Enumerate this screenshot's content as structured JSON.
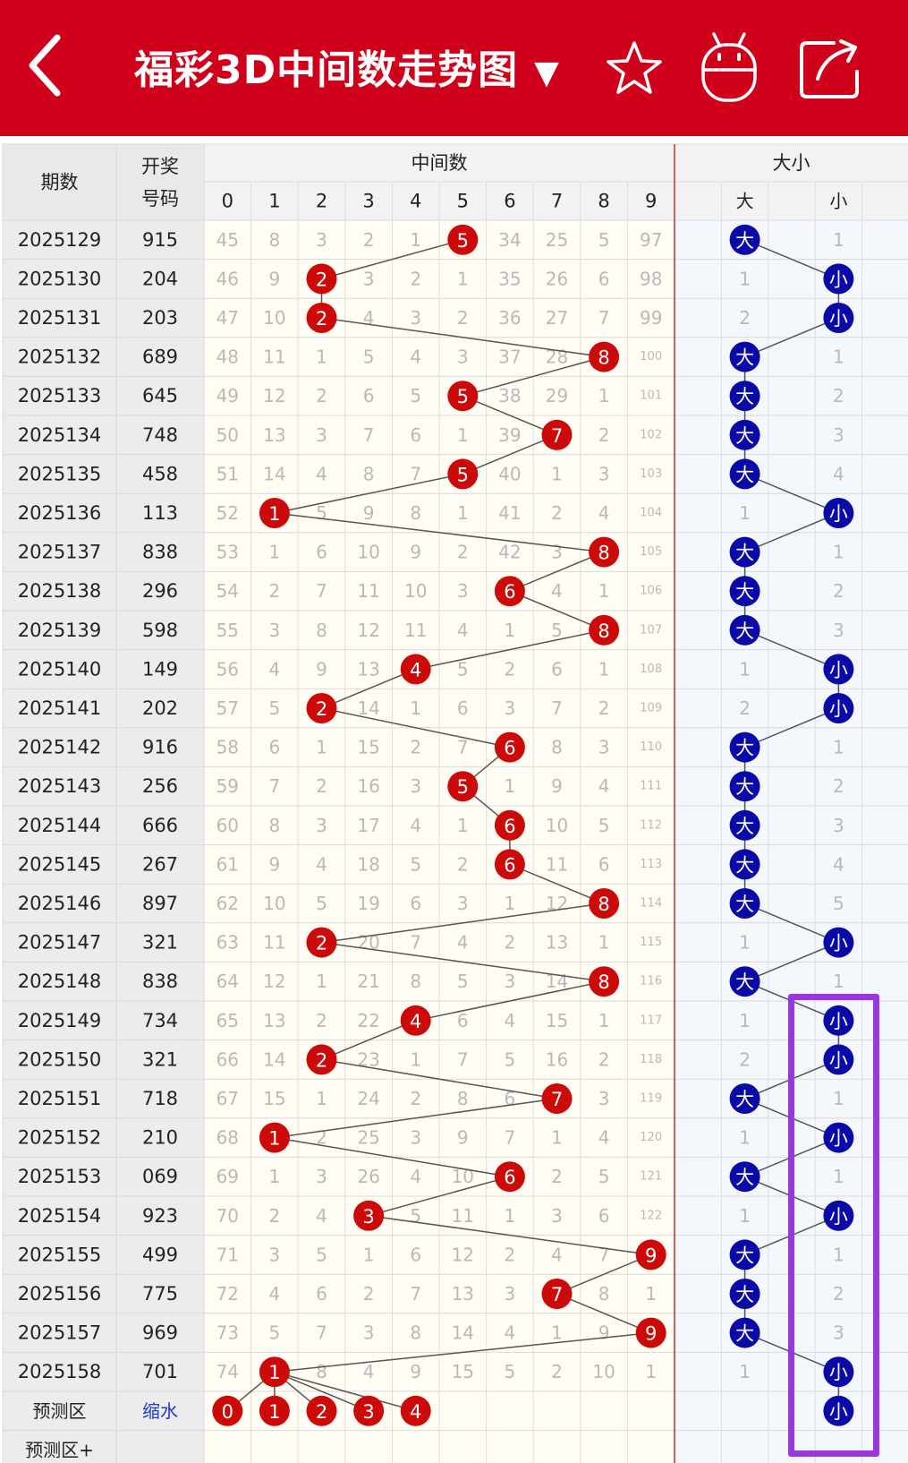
{
  "header": {
    "title": "福彩3D中间数走势图",
    "dropdown_icon": "triangle-down-icon",
    "back_icon": "back-chevron-icon",
    "favorite_icon": "star-icon",
    "robot_icon": "robot-icon",
    "share_icon": "share-icon",
    "color": "#d0021b"
  },
  "table": {
    "col_period": "期数",
    "col_draw_line1": "开奖",
    "col_draw_line2": "号码",
    "group_middle": "中间数",
    "group_size": "大小",
    "digit_headers": [
      "0",
      "1",
      "2",
      "3",
      "4",
      "5",
      "6",
      "7",
      "8",
      "9"
    ],
    "size_headers": [
      "大",
      "",
      "小"
    ],
    "big_label": "大",
    "small_label": "小"
  },
  "chart_data": {
    "type": "table",
    "periods": [
      "2025129",
      "2025130",
      "2025131",
      "2025132",
      "2025133",
      "2025134",
      "2025135",
      "2025136",
      "2025137",
      "2025138",
      "2025139",
      "2025140",
      "2025141",
      "2025142",
      "2025143",
      "2025144",
      "2025145",
      "2025146",
      "2025147",
      "2025148",
      "2025149",
      "2025150",
      "2025151",
      "2025152",
      "2025153",
      "2025154",
      "2025155",
      "2025156",
      "2025157",
      "2025158"
    ],
    "draws": [
      "915",
      "204",
      "203",
      "689",
      "645",
      "748",
      "458",
      "113",
      "838",
      "296",
      "598",
      "149",
      "202",
      "916",
      "256",
      "666",
      "267",
      "897",
      "321",
      "838",
      "734",
      "321",
      "718",
      "210",
      "069",
      "923",
      "499",
      "775",
      "969",
      "701"
    ],
    "middle": [
      5,
      2,
      2,
      8,
      5,
      7,
      5,
      1,
      8,
      6,
      8,
      4,
      2,
      6,
      5,
      6,
      6,
      8,
      2,
      8,
      4,
      2,
      7,
      1,
      6,
      3,
      9,
      7,
      9,
      1
    ],
    "size": [
      "大",
      "小",
      "小",
      "大",
      "大",
      "大",
      "大",
      "小",
      "大",
      "大",
      "大",
      "小",
      "小",
      "大",
      "大",
      "大",
      "大",
      "大",
      "小",
      "大",
      "小",
      "小",
      "大",
      "小",
      "大",
      "小",
      "大",
      "大",
      "大",
      "小"
    ],
    "omissions": [
      [
        "45",
        "8",
        "3",
        "2",
        "1",
        "5",
        "34",
        "25",
        "5",
        "97"
      ],
      [
        "46",
        "9",
        "2",
        "3",
        "2",
        "1",
        "35",
        "26",
        "6",
        "98"
      ],
      [
        "47",
        "10",
        "2",
        "4",
        "3",
        "2",
        "36",
        "27",
        "7",
        "99"
      ],
      [
        "48",
        "11",
        "1",
        "5",
        "4",
        "3",
        "37",
        "28",
        "8",
        "100"
      ],
      [
        "49",
        "12",
        "2",
        "6",
        "5",
        "5",
        "38",
        "29",
        "1",
        "101"
      ],
      [
        "50",
        "13",
        "3",
        "7",
        "6",
        "1",
        "39",
        "7",
        "2",
        "102"
      ],
      [
        "51",
        "14",
        "4",
        "8",
        "7",
        "5",
        "40",
        "1",
        "3",
        "103"
      ],
      [
        "52",
        "1",
        "5",
        "9",
        "8",
        "1",
        "41",
        "2",
        "4",
        "104"
      ],
      [
        "53",
        "1",
        "6",
        "10",
        "9",
        "2",
        "42",
        "3",
        "8",
        "105"
      ],
      [
        "54",
        "2",
        "7",
        "11",
        "10",
        "3",
        "6",
        "4",
        "1",
        "106"
      ],
      [
        "55",
        "3",
        "8",
        "12",
        "11",
        "4",
        "1",
        "5",
        "8",
        "107"
      ],
      [
        "56",
        "4",
        "9",
        "13",
        "4",
        "5",
        "2",
        "6",
        "1",
        "108"
      ],
      [
        "57",
        "5",
        "2",
        "14",
        "1",
        "6",
        "3",
        "7",
        "2",
        "109"
      ],
      [
        "58",
        "6",
        "1",
        "15",
        "2",
        "7",
        "6",
        "8",
        "3",
        "110"
      ],
      [
        "59",
        "7",
        "2",
        "16",
        "3",
        "5",
        "1",
        "9",
        "4",
        "111"
      ],
      [
        "60",
        "8",
        "3",
        "17",
        "4",
        "1",
        "6",
        "10",
        "5",
        "112"
      ],
      [
        "61",
        "9",
        "4",
        "18",
        "5",
        "2",
        "6",
        "11",
        "6",
        "113"
      ],
      [
        "62",
        "10",
        "5",
        "19",
        "6",
        "3",
        "1",
        "12",
        "8",
        "114"
      ],
      [
        "63",
        "11",
        "2",
        "20",
        "7",
        "4",
        "2",
        "13",
        "1",
        "115"
      ],
      [
        "64",
        "12",
        "1",
        "21",
        "8",
        "5",
        "3",
        "14",
        "8",
        "116"
      ],
      [
        "65",
        "13",
        "2",
        "22",
        "4",
        "6",
        "4",
        "15",
        "1",
        "117"
      ],
      [
        "66",
        "14",
        "2",
        "23",
        "1",
        "7",
        "5",
        "16",
        "2",
        "118"
      ],
      [
        "67",
        "15",
        "1",
        "24",
        "2",
        "8",
        "6",
        "7",
        "3",
        "119"
      ],
      [
        "68",
        "1",
        "2",
        "25",
        "3",
        "9",
        "7",
        "1",
        "4",
        "120"
      ],
      [
        "69",
        "1",
        "3",
        "26",
        "4",
        "10",
        "6",
        "2",
        "5",
        "121"
      ],
      [
        "70",
        "2",
        "4",
        "3",
        "5",
        "11",
        "1",
        "3",
        "6",
        "122"
      ],
      [
        "71",
        "3",
        "5",
        "1",
        "6",
        "12",
        "2",
        "4",
        "7",
        "9"
      ],
      [
        "72",
        "4",
        "6",
        "2",
        "7",
        "13",
        "3",
        "7",
        "8",
        "1"
      ],
      [
        "73",
        "5",
        "7",
        "3",
        "8",
        "14",
        "4",
        "1",
        "9",
        "9"
      ],
      [
        "74",
        "1",
        "8",
        "4",
        "9",
        "15",
        "5",
        "2",
        "10",
        "1"
      ]
    ],
    "size_omissions": [
      [
        "大",
        "1"
      ],
      [
        "1",
        "小"
      ],
      [
        "2",
        "小"
      ],
      [
        "大",
        "1"
      ],
      [
        "大",
        "2"
      ],
      [
        "大",
        "3"
      ],
      [
        "大",
        "4"
      ],
      [
        "1",
        "小"
      ],
      [
        "大",
        "1"
      ],
      [
        "大",
        "2"
      ],
      [
        "大",
        "3"
      ],
      [
        "1",
        "小"
      ],
      [
        "2",
        "小"
      ],
      [
        "大",
        "1"
      ],
      [
        "大",
        "2"
      ],
      [
        "大",
        "3"
      ],
      [
        "大",
        "4"
      ],
      [
        "大",
        "5"
      ],
      [
        "1",
        "小"
      ],
      [
        "大",
        "1"
      ],
      [
        "1",
        "小"
      ],
      [
        "2",
        "小"
      ],
      [
        "大",
        "1"
      ],
      [
        "1",
        "小"
      ],
      [
        "大",
        "1"
      ],
      [
        "1",
        "小"
      ],
      [
        "大",
        "1"
      ],
      [
        "大",
        "2"
      ],
      [
        "大",
        "3"
      ],
      [
        "1",
        "小"
      ]
    ],
    "forecast": {
      "label": "预测区",
      "note": "缩水",
      "middle_values": [
        "0",
        "1",
        "2",
        "3",
        "4"
      ],
      "size_value": "小",
      "extra_label": "预测区+"
    },
    "colors": {
      "ball_red": "#cc0a0a",
      "ball_blue": "#0a0aa8",
      "highlight": "#9a36e0"
    }
  }
}
